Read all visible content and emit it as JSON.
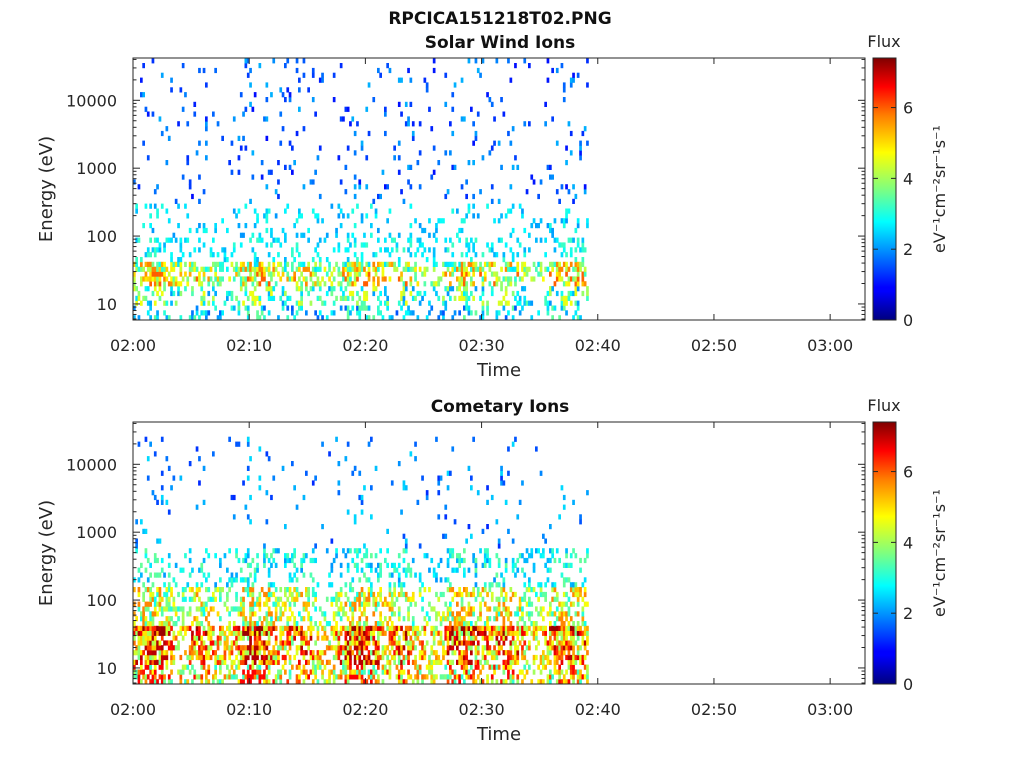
{
  "figure": {
    "title": "RPCICA151218T02.PNG"
  },
  "colorbar": {
    "title": "Flux",
    "ylabel": "eV⁻¹cm⁻²sr⁻¹s⁻¹",
    "range": [
      0,
      7.4
    ],
    "ticks": [
      "0",
      "2",
      "4",
      "6"
    ],
    "colormap": "jet"
  },
  "chart_data": [
    {
      "type": "heatmap",
      "title": "Solar Wind Ions",
      "xlabel": "Time",
      "ylabel": "Energy (eV)",
      "yscale": "log",
      "x_ticks": [
        "02:00",
        "02:10",
        "02:20",
        "02:30",
        "02:40",
        "02:50",
        "03:00"
      ],
      "y_ticks": [
        "10",
        "100",
        "1000",
        "10000"
      ],
      "xlim": [
        "02:00",
        "03:03"
      ],
      "ylim": [
        5.8,
        42000
      ],
      "data_end": "02:39",
      "bands": [
        {
          "energy": [
            5.8,
            9
          ],
          "flux_level": [
            1.5,
            3.5
          ],
          "density": 0.25
        },
        {
          "energy": [
            9,
            18
          ],
          "flux_level": [
            2,
            4.5
          ],
          "density": 0.35
        },
        {
          "energy": [
            18,
            30
          ],
          "flux_level": [
            3,
            5.8
          ],
          "density": 0.5
        },
        {
          "energy": [
            30,
            45
          ],
          "flux_level": [
            2.5,
            5.5
          ],
          "density": 0.75
        },
        {
          "energy": [
            45,
            90
          ],
          "flux_level": [
            2.2,
            3.2
          ],
          "density": 0.25
        },
        {
          "energy": [
            90,
            300
          ],
          "flux_level": [
            2,
            3
          ],
          "density": 0.12
        },
        {
          "energy": [
            300,
            40000
          ],
          "flux_level": [
            1,
            2.2
          ],
          "density": 0.06
        }
      ]
    },
    {
      "type": "heatmap",
      "title": "Cometary Ions",
      "xlabel": "Time",
      "ylabel": "Energy (eV)",
      "yscale": "log",
      "x_ticks": [
        "02:00",
        "02:10",
        "02:20",
        "02:30",
        "02:40",
        "02:50",
        "03:00"
      ],
      "y_ticks": [
        "10",
        "100",
        "1000",
        "10000"
      ],
      "xlim": [
        "02:00",
        "03:03"
      ],
      "ylim": [
        5.8,
        42000
      ],
      "data_end": "02:39",
      "bands": [
        {
          "energy": [
            5.8,
            12
          ],
          "flux_level": [
            3,
            6.5
          ],
          "density": 0.55
        },
        {
          "energy": [
            12,
            30
          ],
          "flux_level": [
            3.5,
            7
          ],
          "density": 0.7
        },
        {
          "energy": [
            30,
            45
          ],
          "flux_level": [
            3.5,
            7.2
          ],
          "density": 0.95
        },
        {
          "energy": [
            45,
            150
          ],
          "flux_level": [
            2.8,
            5.5
          ],
          "density": 0.5
        },
        {
          "energy": [
            150,
            600
          ],
          "flux_level": [
            2,
            3.5
          ],
          "density": 0.25
        },
        {
          "energy": [
            600,
            25000
          ],
          "flux_level": [
            1.2,
            2.5
          ],
          "density": 0.04
        }
      ]
    }
  ]
}
